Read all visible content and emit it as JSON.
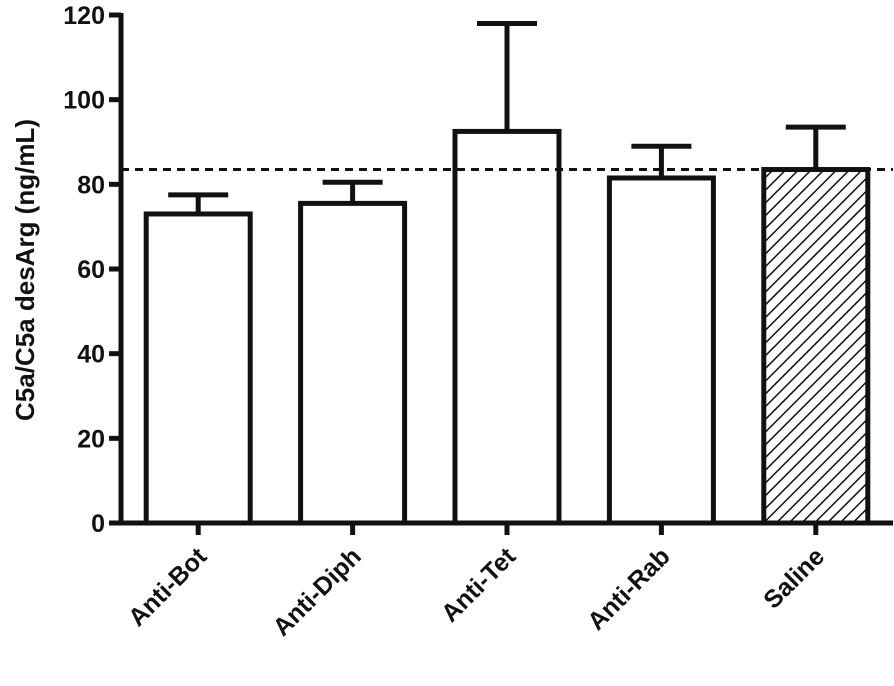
{
  "chart_data": {
    "type": "bar",
    "title": "",
    "xlabel": "",
    "ylabel": "C5a/C5a desArg (ng/mL)",
    "ylim": [
      0,
      120
    ],
    "yticks": [
      0,
      20,
      40,
      60,
      80,
      100,
      120
    ],
    "categories": [
      "Anti-Bot",
      "Anti-Diph",
      "Anti-Tet",
      "Anti-Rab",
      "Saline"
    ],
    "values": [
      73,
      75.5,
      92.5,
      81.5,
      83.5
    ],
    "error_upper": [
      4.5,
      5,
      25.5,
      7.5,
      10
    ],
    "fills": [
      "white",
      "white",
      "white",
      "white",
      "hatched"
    ],
    "reference_line": {
      "value": 83.5,
      "style": "dashed"
    },
    "grid": false,
    "legend": "none"
  }
}
